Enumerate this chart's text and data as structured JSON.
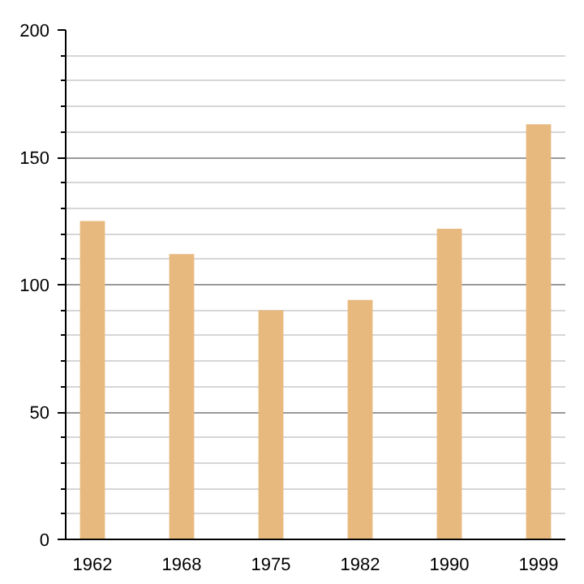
{
  "chart_data": {
    "type": "bar",
    "categories": [
      "1962",
      "1968",
      "1975",
      "1982",
      "1990",
      "1999"
    ],
    "values": [
      125,
      112,
      90,
      94,
      122,
      163
    ],
    "color": "#e8b97f",
    "ylim": [
      0,
      200
    ],
    "yticks": [
      0,
      {
        "value": 10,
        "label": null
      },
      {
        "value": 20,
        "label": null
      },
      {
        "value": 30,
        "label": null
      },
      {
        "value": 40,
        "label": null
      },
      50,
      {
        "value": 60,
        "label": null
      },
      {
        "value": 70,
        "label": null
      },
      {
        "value": 80,
        "label": null
      },
      {
        "value": 90,
        "label": null
      },
      100,
      {
        "value": 110,
        "label": null
      },
      {
        "value": 120,
        "label": null
      },
      {
        "value": 130,
        "label": null
      },
      {
        "value": 140,
        "label": null
      },
      150,
      {
        "value": 160,
        "label": null
      },
      {
        "value": 170,
        "label": null
      },
      {
        "value": 180,
        "label": null
      },
      {
        "value": 190,
        "label": null
      },
      200
    ],
    "grid": "y"
  }
}
